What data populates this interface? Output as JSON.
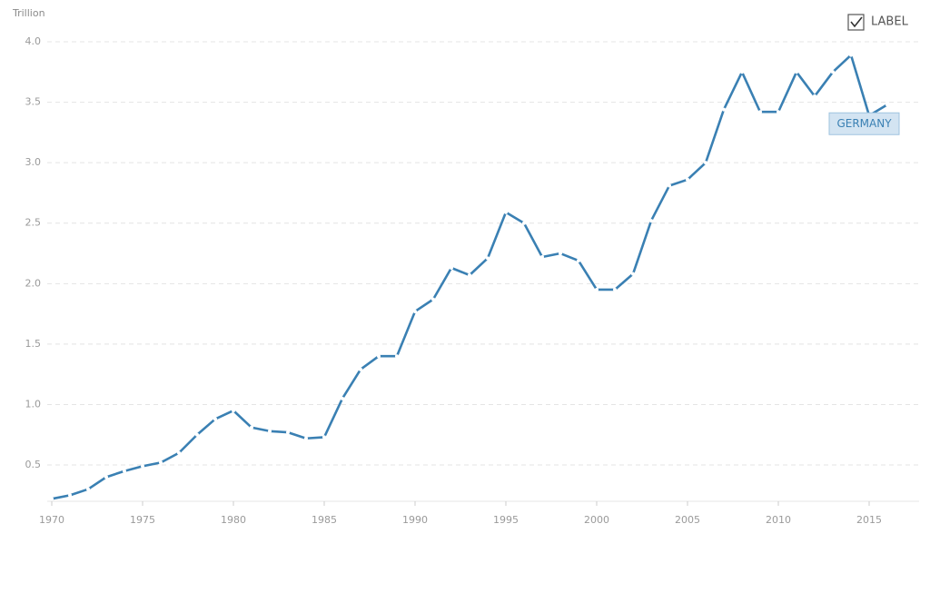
{
  "chart_data": {
    "type": "line",
    "y_unit": "Trillion",
    "toggle_label": "LABEL",
    "x": [
      1970,
      1971,
      1972,
      1973,
      1974,
      1975,
      1976,
      1977,
      1978,
      1979,
      1980,
      1981,
      1982,
      1983,
      1984,
      1985,
      1986,
      1987,
      1988,
      1989,
      1990,
      1991,
      1992,
      1993,
      1994,
      1995,
      1996,
      1997,
      1998,
      1999,
      2000,
      2001,
      2002,
      2003,
      2004,
      2005,
      2006,
      2007,
      2008,
      2009,
      2010,
      2011,
      2012,
      2013,
      2014,
      2015,
      2016
    ],
    "series": [
      {
        "name": "GERMANY",
        "color": "#3a80b3",
        "values": [
          0.22,
          0.25,
          0.3,
          0.4,
          0.45,
          0.49,
          0.52,
          0.6,
          0.75,
          0.88,
          0.95,
          0.81,
          0.78,
          0.77,
          0.72,
          0.73,
          1.05,
          1.29,
          1.4,
          1.4,
          1.77,
          1.87,
          2.13,
          2.07,
          2.21,
          2.59,
          2.5,
          2.22,
          2.25,
          2.19,
          1.95,
          1.95,
          2.08,
          2.52,
          2.81,
          2.86,
          3.0,
          3.44,
          3.75,
          3.42,
          3.42,
          3.75,
          3.55,
          3.75,
          3.89,
          3.39,
          3.48
        ]
      }
    ],
    "xlim": [
      1970,
      2017.5
    ],
    "xticks": [
      1970,
      1975,
      1980,
      1985,
      1990,
      1995,
      2000,
      2005,
      2010,
      2015
    ],
    "ylim": [
      0.2,
      4.0
    ],
    "yticks": [
      0.5,
      {
        "value": 1,
        "label": "1.0"
      },
      1.5,
      {
        "value": 2,
        "label": "2.0"
      },
      2.5,
      {
        "value": 3,
        "label": "3.0"
      },
      3.5,
      {
        "value": 4,
        "label": "4.0"
      }
    ],
    "grid": true
  }
}
